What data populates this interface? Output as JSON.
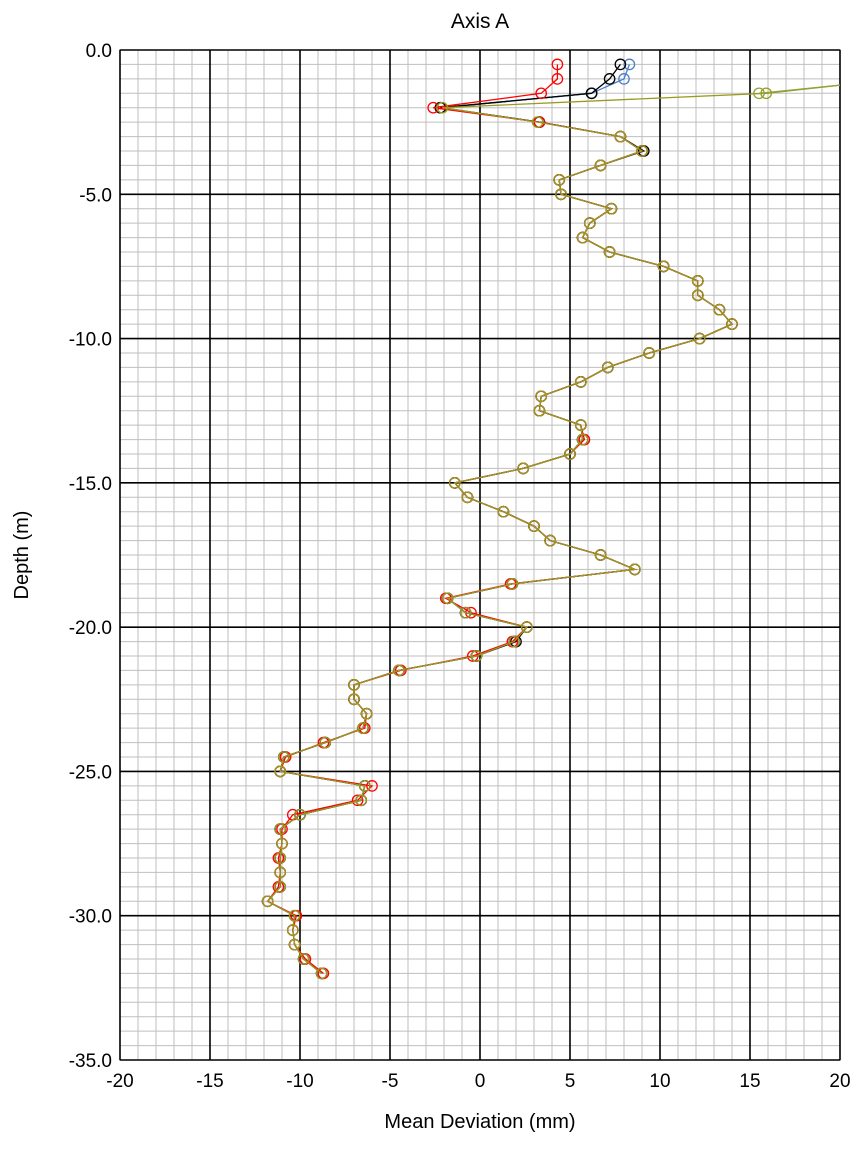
{
  "chart_data": {
    "type": "line",
    "title": "Axis A",
    "xlabel": "Mean Deviation (mm)",
    "ylabel": "Depth (m)",
    "xlim": [
      -20,
      20
    ],
    "ylim": [
      -35,
      0
    ],
    "x_major_step": 5,
    "x_minor_step": 1,
    "y_major_step": 5,
    "y_minor_step": 0.5,
    "x_tick_labels": [
      "-20",
      "-15",
      "-10",
      "-5",
      "0",
      "5",
      "10",
      "15",
      "20"
    ],
    "y_tick_labels": [
      "0.0",
      "-5.0",
      "-10.0",
      "-15.0",
      "-20.0",
      "-25.0",
      "-30.0",
      "-35.0"
    ],
    "grid": true,
    "marker": "open-circle",
    "legend": "none",
    "series": [
      {
        "color": "#4a7fc8",
        "points": [
          [
            8.3,
            -0.5
          ],
          [
            8.0,
            -1.0
          ],
          [
            6.2,
            -1.5
          ],
          [
            -2.1,
            -2.0
          ],
          [
            3.3,
            -2.5
          ],
          [
            7.8,
            -3.0
          ],
          [
            9.0,
            -3.5
          ],
          [
            6.7,
            -4.0
          ],
          [
            4.4,
            -4.5
          ],
          [
            4.5,
            -5.0
          ],
          [
            7.3,
            -5.5
          ],
          [
            6.1,
            -6.0
          ],
          [
            5.7,
            -6.5
          ],
          [
            7.2,
            -7.0
          ],
          [
            10.2,
            -7.5
          ],
          [
            12.1,
            -8.0
          ],
          [
            12.1,
            -8.5
          ],
          [
            13.3,
            -9.0
          ],
          [
            14.0,
            -9.5
          ],
          [
            12.2,
            -10.0
          ],
          [
            9.4,
            -10.5
          ],
          [
            7.1,
            -11.0
          ],
          [
            5.6,
            -11.5
          ],
          [
            3.4,
            -12.0
          ],
          [
            3.3,
            -12.5
          ],
          [
            5.6,
            -13.0
          ],
          [
            5.7,
            -13.5
          ],
          [
            5.0,
            -14.0
          ],
          [
            2.4,
            -14.5
          ],
          [
            -1.4,
            -15.0
          ],
          [
            -0.7,
            -15.5
          ],
          [
            1.3,
            -16.0
          ],
          [
            3.0,
            -16.5
          ],
          [
            3.9,
            -17.0
          ],
          [
            6.7,
            -17.5
          ],
          [
            8.6,
            -18.0
          ],
          [
            1.8,
            -18.5
          ],
          [
            -1.8,
            -19.0
          ],
          [
            -0.8,
            -19.5
          ],
          [
            2.6,
            -20.0
          ],
          [
            1.9,
            -20.5
          ],
          [
            -0.2,
            -21.0
          ],
          [
            -4.5,
            -21.5
          ],
          [
            -7.0,
            -22.0
          ],
          [
            -7.0,
            -22.5
          ],
          [
            -6.3,
            -23.0
          ],
          [
            -6.5,
            -23.5
          ],
          [
            -8.6,
            -24.0
          ],
          [
            -10.9,
            -24.5
          ],
          [
            -11.1,
            -25.0
          ],
          [
            -6.4,
            -25.5
          ],
          [
            -6.6,
            -26.0
          ],
          [
            -10.0,
            -26.5
          ],
          [
            -11.1,
            -27.0
          ],
          [
            -11.0,
            -27.5
          ],
          [
            -11.1,
            -28.0
          ],
          [
            -11.1,
            -28.5
          ],
          [
            -11.1,
            -29.0
          ],
          [
            -11.8,
            -29.5
          ],
          [
            -10.3,
            -30.0
          ],
          [
            -10.4,
            -30.5
          ],
          [
            -10.3,
            -31.0
          ],
          [
            -9.8,
            -31.5
          ],
          [
            -8.8,
            -32.0
          ]
        ]
      },
      {
        "color": "#1f4e79",
        "points": [
          [
            6.2,
            -1.5
          ],
          [
            -2.2,
            -2.0
          ],
          [
            3.3,
            -2.5
          ],
          [
            7.8,
            -3.0
          ],
          [
            9.0,
            -3.5
          ],
          [
            6.7,
            -4.0
          ],
          [
            4.4,
            -4.5
          ],
          [
            4.5,
            -5.0
          ],
          [
            7.3,
            -5.5
          ],
          [
            6.1,
            -6.0
          ],
          [
            5.7,
            -6.5
          ],
          [
            7.2,
            -7.0
          ],
          [
            10.2,
            -7.5
          ],
          [
            12.1,
            -8.0
          ],
          [
            12.1,
            -8.5
          ],
          [
            13.3,
            -9.0
          ],
          [
            14.0,
            -9.5
          ],
          [
            12.2,
            -10.0
          ],
          [
            9.4,
            -10.5
          ],
          [
            7.1,
            -11.0
          ],
          [
            5.6,
            -11.5
          ],
          [
            3.4,
            -12.0
          ],
          [
            3.3,
            -12.5
          ],
          [
            5.6,
            -13.0
          ],
          [
            5.7,
            -13.5
          ],
          [
            5.0,
            -14.0
          ],
          [
            2.4,
            -14.5
          ],
          [
            -1.4,
            -15.0
          ],
          [
            -0.7,
            -15.5
          ],
          [
            1.3,
            -16.0
          ],
          [
            3.0,
            -16.5
          ],
          [
            3.9,
            -17.0
          ],
          [
            6.7,
            -17.5
          ],
          [
            8.6,
            -18.0
          ],
          [
            1.8,
            -18.5
          ],
          [
            -1.8,
            -19.0
          ],
          [
            -0.8,
            -19.5
          ],
          [
            2.6,
            -20.0
          ],
          [
            1.9,
            -20.5
          ],
          [
            -0.2,
            -21.0
          ],
          [
            -4.5,
            -21.5
          ],
          [
            -7.0,
            -22.0
          ],
          [
            -7.0,
            -22.5
          ],
          [
            -6.3,
            -23.0
          ],
          [
            -6.5,
            -23.5
          ],
          [
            -8.6,
            -24.0
          ],
          [
            -10.9,
            -24.5
          ],
          [
            -11.1,
            -25.0
          ],
          [
            -6.4,
            -25.5
          ],
          [
            -6.6,
            -26.0
          ],
          [
            -10.0,
            -26.5
          ],
          [
            -11.1,
            -27.0
          ]
        ]
      },
      {
        "color": "#000000",
        "points": [
          [
            7.8,
            -0.5
          ],
          [
            7.2,
            -1.0
          ],
          [
            6.2,
            -1.5
          ],
          [
            -2.2,
            -2.0
          ],
          [
            3.3,
            -2.5
          ],
          [
            7.8,
            -3.0
          ],
          [
            9.1,
            -3.5
          ],
          [
            6.7,
            -4.0
          ],
          [
            4.4,
            -4.5
          ],
          [
            4.5,
            -5.0
          ],
          [
            7.3,
            -5.5
          ],
          [
            6.1,
            -6.0
          ],
          [
            5.7,
            -6.5
          ],
          [
            7.2,
            -7.0
          ],
          [
            10.2,
            -7.5
          ],
          [
            12.1,
            -8.0
          ],
          [
            12.1,
            -8.5
          ],
          [
            13.3,
            -9.0
          ],
          [
            14.0,
            -9.5
          ],
          [
            12.2,
            -10.0
          ],
          [
            9.4,
            -10.5
          ],
          [
            7.1,
            -11.0
          ],
          [
            5.6,
            -11.5
          ],
          [
            3.4,
            -12.0
          ],
          [
            3.3,
            -12.5
          ],
          [
            5.6,
            -13.0
          ],
          [
            5.7,
            -13.5
          ],
          [
            5.0,
            -14.0
          ],
          [
            2.4,
            -14.5
          ],
          [
            -1.4,
            -15.0
          ],
          [
            -0.7,
            -15.5
          ],
          [
            1.3,
            -16.0
          ],
          [
            3.0,
            -16.5
          ],
          [
            3.9,
            -17.0
          ],
          [
            6.7,
            -17.5
          ],
          [
            8.6,
            -18.0
          ],
          [
            1.8,
            -18.5
          ],
          [
            -1.8,
            -19.0
          ],
          [
            -0.8,
            -19.5
          ],
          [
            2.6,
            -20.0
          ],
          [
            2.0,
            -20.5
          ],
          [
            -0.2,
            -21.0
          ],
          [
            -4.5,
            -21.5
          ],
          [
            -7.0,
            -22.0
          ],
          [
            -7.0,
            -22.5
          ],
          [
            -6.3,
            -23.0
          ],
          [
            -6.5,
            -23.5
          ],
          [
            -8.6,
            -24.0
          ],
          [
            -10.9,
            -24.5
          ],
          [
            -11.1,
            -25.0
          ],
          [
            -6.4,
            -25.5
          ],
          [
            -6.6,
            -26.0
          ],
          [
            -10.0,
            -26.5
          ],
          [
            -11.1,
            -27.0
          ],
          [
            -11.0,
            -27.5
          ],
          [
            -11.1,
            -28.0
          ],
          [
            -11.1,
            -28.5
          ],
          [
            -11.1,
            -29.0
          ],
          [
            -11.8,
            -29.5
          ],
          [
            -10.3,
            -30.0
          ],
          [
            -10.4,
            -30.5
          ],
          [
            -10.3,
            -31.0
          ],
          [
            -9.8,
            -31.5
          ],
          [
            -8.8,
            -32.0
          ]
        ]
      },
      {
        "color": "#ff0000",
        "points": [
          [
            4.3,
            -0.5
          ],
          [
            4.3,
            -1.0
          ],
          [
            3.4,
            -1.5
          ],
          [
            -2.6,
            -2.0
          ],
          [
            3.3,
            -2.5
          ],
          [
            7.8,
            -3.0
          ],
          [
            9.0,
            -3.5
          ],
          [
            6.7,
            -4.0
          ],
          [
            4.4,
            -4.5
          ],
          [
            4.5,
            -5.0
          ],
          [
            7.3,
            -5.5
          ],
          [
            6.1,
            -6.0
          ],
          [
            5.7,
            -6.5
          ],
          [
            7.2,
            -7.0
          ],
          [
            10.2,
            -7.5
          ],
          [
            12.1,
            -8.0
          ],
          [
            12.1,
            -8.5
          ],
          [
            13.3,
            -9.0
          ],
          [
            14.0,
            -9.5
          ],
          [
            12.2,
            -10.0
          ],
          [
            9.4,
            -10.5
          ],
          [
            7.1,
            -11.0
          ],
          [
            5.6,
            -11.5
          ],
          [
            3.4,
            -12.0
          ],
          [
            3.3,
            -12.5
          ],
          [
            5.6,
            -13.0
          ],
          [
            5.8,
            -13.5
          ],
          [
            5.0,
            -14.0
          ],
          [
            2.4,
            -14.5
          ],
          [
            -1.4,
            -15.0
          ],
          [
            -0.7,
            -15.5
          ],
          [
            1.3,
            -16.0
          ],
          [
            3.0,
            -16.5
          ],
          [
            3.9,
            -17.0
          ],
          [
            6.7,
            -17.5
          ],
          [
            8.6,
            -18.0
          ],
          [
            1.7,
            -18.5
          ],
          [
            -1.9,
            -19.0
          ],
          [
            -0.5,
            -19.5
          ],
          [
            2.6,
            -20.0
          ],
          [
            1.8,
            -20.5
          ],
          [
            -0.4,
            -21.0
          ],
          [
            -4.4,
            -21.5
          ],
          [
            -7.0,
            -22.0
          ],
          [
            -7.0,
            -22.5
          ],
          [
            -6.3,
            -23.0
          ],
          [
            -6.4,
            -23.5
          ],
          [
            -8.7,
            -24.0
          ],
          [
            -10.8,
            -24.5
          ],
          [
            -11.1,
            -25.0
          ],
          [
            -6.0,
            -25.5
          ],
          [
            -6.8,
            -26.0
          ],
          [
            -10.4,
            -26.5
          ],
          [
            -11.0,
            -27.0
          ],
          [
            -11.0,
            -27.5
          ],
          [
            -11.2,
            -28.0
          ],
          [
            -11.1,
            -28.5
          ],
          [
            -11.2,
            -29.0
          ],
          [
            -11.8,
            -29.5
          ],
          [
            -10.2,
            -30.0
          ],
          [
            -10.4,
            -30.5
          ],
          [
            -10.3,
            -31.0
          ],
          [
            -9.7,
            -31.5
          ],
          [
            -8.7,
            -32.0
          ]
        ]
      },
      {
        "color": "#9c9a1e",
        "points": [
          [
            20.3,
            -1.2
          ],
          [
            15.9,
            -1.5
          ],
          [
            -2.1,
            -2.0
          ],
          [
            3.2,
            -2.5
          ],
          [
            7.8,
            -3.0
          ],
          [
            9.0,
            -3.5
          ],
          [
            6.7,
            -4.0
          ],
          [
            4.4,
            -4.5
          ],
          [
            4.5,
            -5.0
          ],
          [
            7.3,
            -5.5
          ],
          [
            6.1,
            -6.0
          ],
          [
            5.7,
            -6.5
          ],
          [
            7.2,
            -7.0
          ],
          [
            10.2,
            -7.5
          ],
          [
            12.1,
            -8.0
          ],
          [
            12.1,
            -8.5
          ],
          [
            13.3,
            -9.0
          ],
          [
            14.0,
            -9.5
          ],
          [
            12.2,
            -10.0
          ],
          [
            9.4,
            -10.5
          ],
          [
            7.1,
            -11.0
          ],
          [
            5.6,
            -11.5
          ],
          [
            3.4,
            -12.0
          ],
          [
            3.3,
            -12.5
          ],
          [
            5.6,
            -13.0
          ],
          [
            5.7,
            -13.5
          ],
          [
            5.0,
            -14.0
          ],
          [
            2.4,
            -14.5
          ],
          [
            -1.4,
            -15.0
          ],
          [
            -0.7,
            -15.5
          ],
          [
            1.3,
            -16.0
          ],
          [
            3.0,
            -16.5
          ],
          [
            3.9,
            -17.0
          ],
          [
            6.7,
            -17.5
          ],
          [
            8.6,
            -18.0
          ],
          [
            1.8,
            -18.5
          ],
          [
            -1.8,
            -19.0
          ],
          [
            -0.8,
            -19.5
          ],
          [
            2.6,
            -20.0
          ],
          [
            1.9,
            -20.5
          ],
          [
            -0.2,
            -21.0
          ],
          [
            -4.5,
            -21.5
          ],
          [
            -7.0,
            -22.0
          ],
          [
            -7.0,
            -22.5
          ],
          [
            -6.3,
            -23.0
          ],
          [
            -6.5,
            -23.5
          ],
          [
            -8.6,
            -24.0
          ],
          [
            -10.9,
            -24.5
          ],
          [
            -11.1,
            -25.0
          ],
          [
            -6.4,
            -25.5
          ],
          [
            -6.6,
            -26.0
          ],
          [
            -10.0,
            -26.5
          ],
          [
            -11.1,
            -27.0
          ],
          [
            -11.0,
            -27.5
          ],
          [
            -11.1,
            -28.0
          ],
          [
            -11.1,
            -28.5
          ],
          [
            -11.1,
            -29.0
          ],
          [
            -11.8,
            -29.5
          ],
          [
            -10.3,
            -30.0
          ],
          [
            -10.4,
            -30.5
          ],
          [
            -10.3,
            -31.0
          ],
          [
            -9.8,
            -31.5
          ],
          [
            -8.8,
            -32.0
          ]
        ]
      },
      {
        "color": "#8fa33a",
        "points": [
          [
            20.3,
            -1.2
          ],
          [
            15.5,
            -1.5
          ]
        ]
      }
    ]
  }
}
